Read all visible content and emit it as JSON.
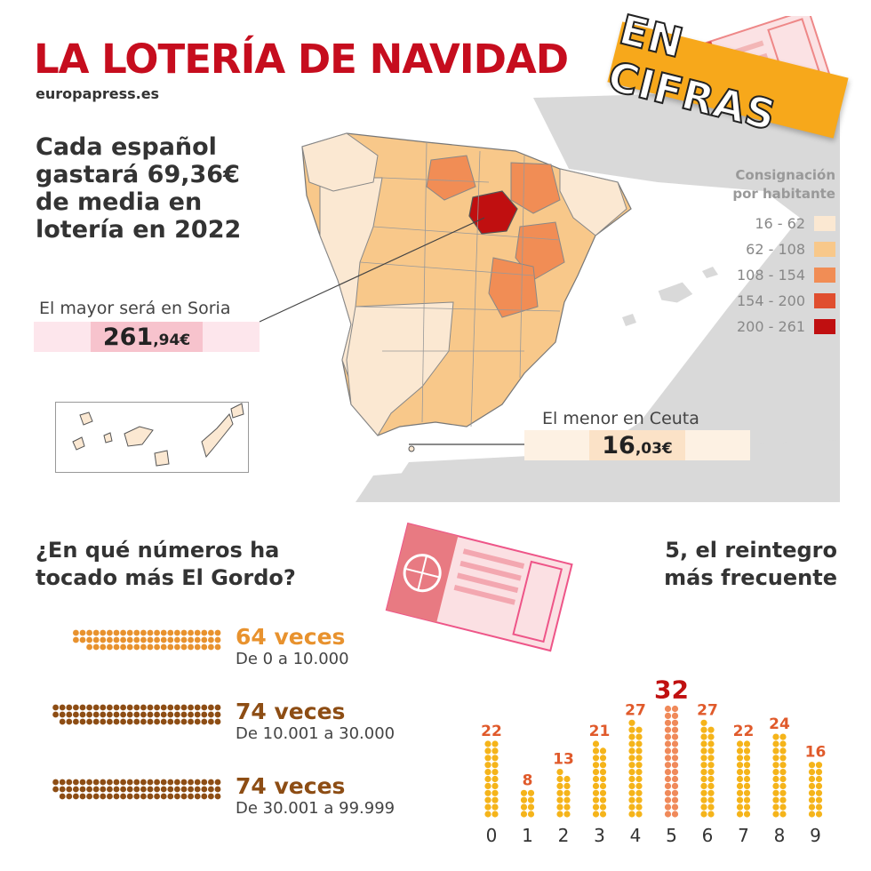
{
  "header": {
    "title": "LA LOTERÍA DE NAVIDAD",
    "source": "europapress.es",
    "badge": "EN CIFRAS"
  },
  "intro": "Cada español gastará 69,36€ de media en lotería en 2022",
  "map": {
    "highest": {
      "label": "El mayor será en Soria",
      "value_int": "261",
      "value_dec": ",94€"
    },
    "lowest": {
      "label": "El menor en Ceuta",
      "value_int": "16",
      "value_dec": ",03€"
    },
    "legend": {
      "title_1": "Consignación",
      "title_2": "por habitante",
      "items": [
        {
          "range": "16 - 62",
          "color": "#fbe8d2"
        },
        {
          "range": "62 - 108",
          "color": "#f8c88a"
        },
        {
          "range": "108 - 154",
          "color": "#f18d55"
        },
        {
          "range": "154 - 200",
          "color": "#e04e2f"
        },
        {
          "range": "200 - 261",
          "color": "#c00f10"
        }
      ]
    }
  },
  "gordo": {
    "title_1": "¿En qué números ha",
    "title_2": "tocado más El Gordo?",
    "rows": [
      {
        "count": 64,
        "label": "64 veces",
        "range": "De 0 a 10.000",
        "color": "#e8922e"
      },
      {
        "count": 74,
        "label": "74 veces",
        "range": "De 10.001 a 30.000",
        "color": "#8d4d14"
      },
      {
        "count": 74,
        "label": "74 veces",
        "range": "De 30.001 a 99.999",
        "color": "#8d4d14"
      }
    ]
  },
  "reintegro": {
    "title_1": "5, el reintegro",
    "title_2": "más frecuente",
    "colors": {
      "normal": "#f5b41a",
      "highlight": "#f08a5a",
      "label": "#e05a2b",
      "max_label": "#c01010"
    }
  },
  "chart_data": {
    "type": "bar",
    "title": "5, el reintegro más frecuente",
    "categories": [
      "0",
      "1",
      "2",
      "3",
      "4",
      "5",
      "6",
      "7",
      "8",
      "9"
    ],
    "values": [
      22,
      8,
      13,
      21,
      27,
      32,
      27,
      22,
      24,
      16
    ],
    "highlight_category": "5"
  }
}
